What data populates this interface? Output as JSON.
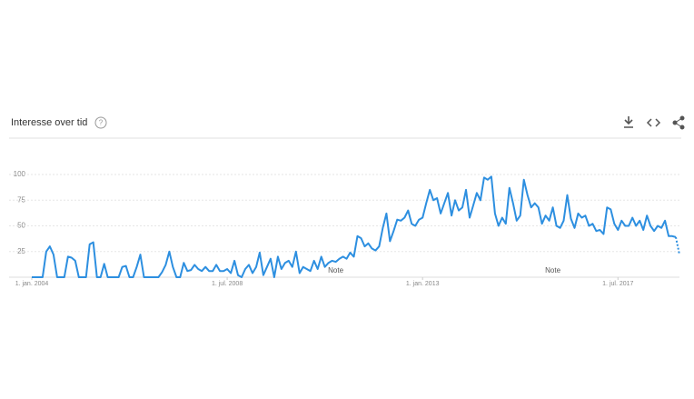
{
  "header": {
    "title": "Interesse over tid"
  },
  "chart_data": {
    "type": "line",
    "x": [
      "2004-01",
      "2004-02",
      "2004-03",
      "2004-04",
      "2004-05",
      "2004-06",
      "2004-07",
      "2004-08",
      "2004-09",
      "2004-10",
      "2004-11",
      "2004-12",
      "2005-01",
      "2005-02",
      "2005-03",
      "2005-04",
      "2005-05",
      "2005-06",
      "2005-07",
      "2005-08",
      "2005-09",
      "2005-10",
      "2005-11",
      "2005-12",
      "2006-01",
      "2006-02",
      "2006-03",
      "2006-04",
      "2006-05",
      "2006-06",
      "2006-07",
      "2006-08",
      "2006-09",
      "2006-10",
      "2006-11",
      "2006-12",
      "2007-01",
      "2007-02",
      "2007-03",
      "2007-04",
      "2007-05",
      "2007-06",
      "2007-07",
      "2007-08",
      "2007-09",
      "2007-10",
      "2007-11",
      "2007-12",
      "2008-01",
      "2008-02",
      "2008-03",
      "2008-04",
      "2008-05",
      "2008-06",
      "2008-07",
      "2008-08",
      "2008-09",
      "2008-10",
      "2008-11",
      "2008-12",
      "2009-01",
      "2009-02",
      "2009-03",
      "2009-04",
      "2009-05",
      "2009-06",
      "2009-07",
      "2009-08",
      "2009-09",
      "2009-10",
      "2009-11",
      "2009-12",
      "2010-01",
      "2010-02",
      "2010-03",
      "2010-04",
      "2010-05",
      "2010-06",
      "2010-07",
      "2010-08",
      "2010-09",
      "2010-10",
      "2010-11",
      "2010-12",
      "2011-01",
      "2011-02",
      "2011-03",
      "2011-04",
      "2011-05",
      "2011-06",
      "2011-07",
      "2011-08",
      "2011-09",
      "2011-10",
      "2011-11",
      "2011-12",
      "2012-01",
      "2012-02",
      "2012-03",
      "2012-04",
      "2012-05",
      "2012-06",
      "2012-07",
      "2012-08",
      "2012-09",
      "2012-10",
      "2012-11",
      "2012-12",
      "2013-01",
      "2013-02",
      "2013-03",
      "2013-04",
      "2013-05",
      "2013-06",
      "2013-07",
      "2013-08",
      "2013-09",
      "2013-10",
      "2013-11",
      "2013-12",
      "2014-01",
      "2014-02",
      "2014-03",
      "2014-04",
      "2014-05",
      "2014-06",
      "2014-07",
      "2014-08",
      "2014-09",
      "2014-10",
      "2014-11",
      "2014-12",
      "2015-01",
      "2015-02",
      "2015-03",
      "2015-04",
      "2015-05",
      "2015-06",
      "2015-07",
      "2015-08",
      "2015-09",
      "2015-10",
      "2015-11",
      "2015-12",
      "2016-01",
      "2016-02",
      "2016-03",
      "2016-04",
      "2016-05",
      "2016-06",
      "2016-07",
      "2016-08",
      "2016-09",
      "2016-10",
      "2016-11",
      "2016-12",
      "2017-01",
      "2017-02",
      "2017-03",
      "2017-04",
      "2017-05",
      "2017-06",
      "2017-07",
      "2017-08",
      "2017-09",
      "2017-10",
      "2017-11",
      "2017-12",
      "2018-01",
      "2018-02",
      "2018-03",
      "2018-04",
      "2018-05",
      "2018-06",
      "2018-07",
      "2018-08",
      "2018-09",
      "2018-10",
      "2018-11"
    ],
    "series": [
      {
        "color": "#2d8fe0",
        "values": [
          0,
          0,
          0,
          0,
          25,
          30,
          22,
          0,
          0,
          0,
          20,
          19,
          16,
          0,
          0,
          0,
          32,
          34,
          0,
          0,
          13,
          0,
          0,
          0,
          0,
          10,
          11,
          0,
          0,
          10,
          22,
          0,
          0,
          0,
          0,
          0,
          5,
          12,
          25,
          10,
          0,
          0,
          14,
          6,
          7,
          12,
          8,
          6,
          10,
          6,
          6,
          12,
          6,
          6,
          8,
          4,
          16,
          2,
          0,
          8,
          12,
          4,
          10,
          24,
          2,
          10,
          18,
          0,
          20,
          8,
          14,
          16,
          10,
          25,
          4,
          10,
          8,
          6,
          16,
          8,
          20,
          10,
          14,
          16,
          15,
          18,
          20,
          18,
          24,
          20,
          40,
          38,
          30,
          33,
          28,
          26,
          30,
          48,
          62,
          35,
          45,
          56,
          55,
          58,
          65,
          52,
          50,
          56,
          58,
          72,
          85,
          75,
          77,
          62,
          72,
          82,
          60,
          75,
          65,
          68,
          85,
          58,
          70,
          82,
          75,
          97,
          95,
          98,
          62,
          50,
          58,
          52,
          87,
          72,
          55,
          60,
          95,
          80,
          68,
          72,
          68,
          52,
          60,
          55,
          68,
          50,
          48,
          55,
          80,
          57,
          48,
          62,
          58,
          60,
          50,
          52,
          45,
          46,
          42,
          68,
          66,
          52,
          46,
          55,
          50,
          50,
          58,
          50,
          55,
          46,
          60,
          50,
          45,
          50,
          48,
          55,
          40,
          40,
          39
        ]
      },
      {
        "color": "#2d8fe0",
        "dashed": true,
        "x": [
          "2018-11",
          "2018-12"
        ],
        "values": [
          39,
          22
        ]
      }
    ],
    "xlim": [
      "2004-01",
      "2018-12"
    ],
    "xticks": [
      {
        "value": "2004-01",
        "label": "1. jan. 2004"
      },
      {
        "value": "2008-07",
        "label": "1. jul. 2008"
      },
      {
        "value": "2013-01",
        "label": "1. jan. 2013"
      },
      {
        "value": "2017-07",
        "label": "1. jul. 2017"
      }
    ],
    "ylim": [
      0,
      100
    ],
    "yticks": [
      25,
      50,
      75,
      100
    ],
    "grid": true,
    "annotations": [
      {
        "x": "2011-01",
        "text": "Note"
      },
      {
        "x": "2016-01",
        "text": "Note"
      }
    ]
  }
}
